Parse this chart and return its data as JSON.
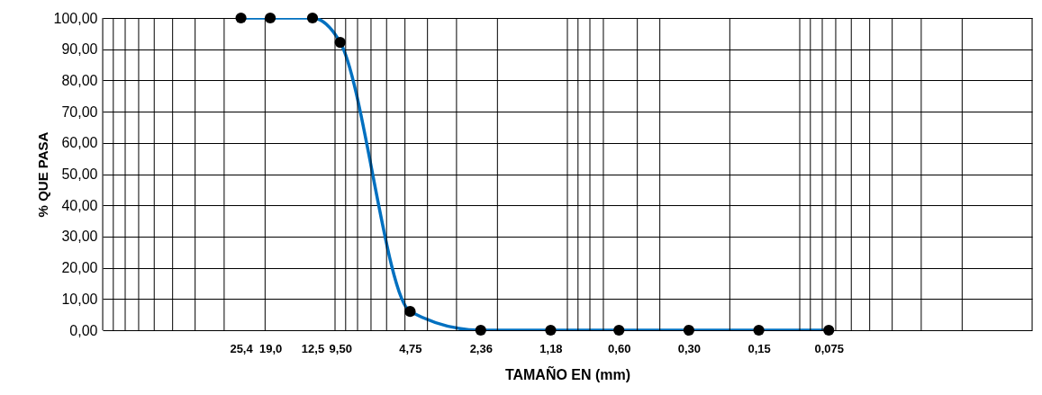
{
  "chart_data": {
    "type": "line",
    "xlabel": "TAMAÑO EN (mm)",
    "ylabel": "% QUE PASA",
    "x": [
      25.4,
      19.0,
      12.5,
      9.5,
      4.75,
      2.36,
      1.18,
      0.6,
      0.3,
      0.15,
      0.075
    ],
    "series": [
      {
        "color": "#0070c0",
        "values": [
          100,
          100,
          100,
          92.2,
          6.0,
          0,
          0,
          0,
          0,
          0,
          0
        ]
      }
    ],
    "log": "x",
    "xlim": [
      100,
      0.01
    ],
    "ylim": [
      0,
      100
    ],
    "xticks": [
      {
        "value": 25.4,
        "label": "25,4"
      },
      {
        "value": 19.0,
        "label": "19,0"
      },
      {
        "value": 12.5,
        "label": "12,5"
      },
      {
        "value": 9.5,
        "label": "9,50"
      },
      {
        "value": 4.75,
        "label": "4,75"
      },
      {
        "value": 2.36,
        "label": "2,36"
      },
      {
        "value": 1.18,
        "label": "1,18"
      },
      {
        "value": 0.6,
        "label": "0,60"
      },
      {
        "value": 0.3,
        "label": "0,30"
      },
      {
        "value": 0.15,
        "label": "0,15"
      },
      {
        "value": 0.075,
        "label": "0,075"
      },
      {
        "value": 100,
        "label": null
      },
      {
        "value": 90,
        "label": null
      },
      {
        "value": 80,
        "label": null
      },
      {
        "value": 70,
        "label": null
      },
      {
        "value": 60,
        "label": null
      },
      {
        "value": 50,
        "label": null
      },
      {
        "value": 40,
        "label": null
      },
      {
        "value": 30,
        "label": null
      },
      {
        "value": 20,
        "label": null
      },
      {
        "value": 10,
        "label": null
      },
      {
        "value": 9,
        "label": null
      },
      {
        "value": 8,
        "label": null
      },
      {
        "value": 7,
        "label": null
      },
      {
        "value": 6,
        "label": null
      },
      {
        "value": 5,
        "label": null
      },
      {
        "value": 4,
        "label": null
      },
      {
        "value": 3,
        "label": null
      },
      {
        "value": 2,
        "label": null
      },
      {
        "value": 1,
        "label": null
      },
      {
        "value": 0.9,
        "label": null
      },
      {
        "value": 0.8,
        "label": null
      },
      {
        "value": 0.7,
        "label": null
      },
      {
        "value": 0.5,
        "label": null
      },
      {
        "value": 0.4,
        "label": null
      },
      {
        "value": 0.2,
        "label": null
      },
      {
        "value": 0.1,
        "label": null
      },
      {
        "value": 0.09,
        "label": null
      },
      {
        "value": 0.08,
        "label": null
      },
      {
        "value": 0.07,
        "label": null
      },
      {
        "value": 0.06,
        "label": null
      },
      {
        "value": 0.05,
        "label": null
      },
      {
        "value": 0.04,
        "label": null
      },
      {
        "value": 0.03,
        "label": null
      },
      {
        "value": 0.02,
        "label": null
      },
      {
        "value": 0.01,
        "label": null
      }
    ],
    "yticks": [
      {
        "value": 0,
        "label": "0,00"
      },
      {
        "value": 10,
        "label": "10,00"
      },
      {
        "value": 20,
        "label": "20,00"
      },
      {
        "value": 30,
        "label": "30,00"
      },
      {
        "value": 40,
        "label": "40,00"
      },
      {
        "value": 50,
        "label": "50,00"
      },
      {
        "value": 60,
        "label": "60,00"
      },
      {
        "value": 70,
        "label": "70,00"
      },
      {
        "value": 80,
        "label": "80,00"
      },
      {
        "value": 90,
        "label": "90,00"
      },
      {
        "value": 100,
        "label": "100,00"
      }
    ],
    "grid": true,
    "marker": "circle",
    "line_style": "solid"
  }
}
